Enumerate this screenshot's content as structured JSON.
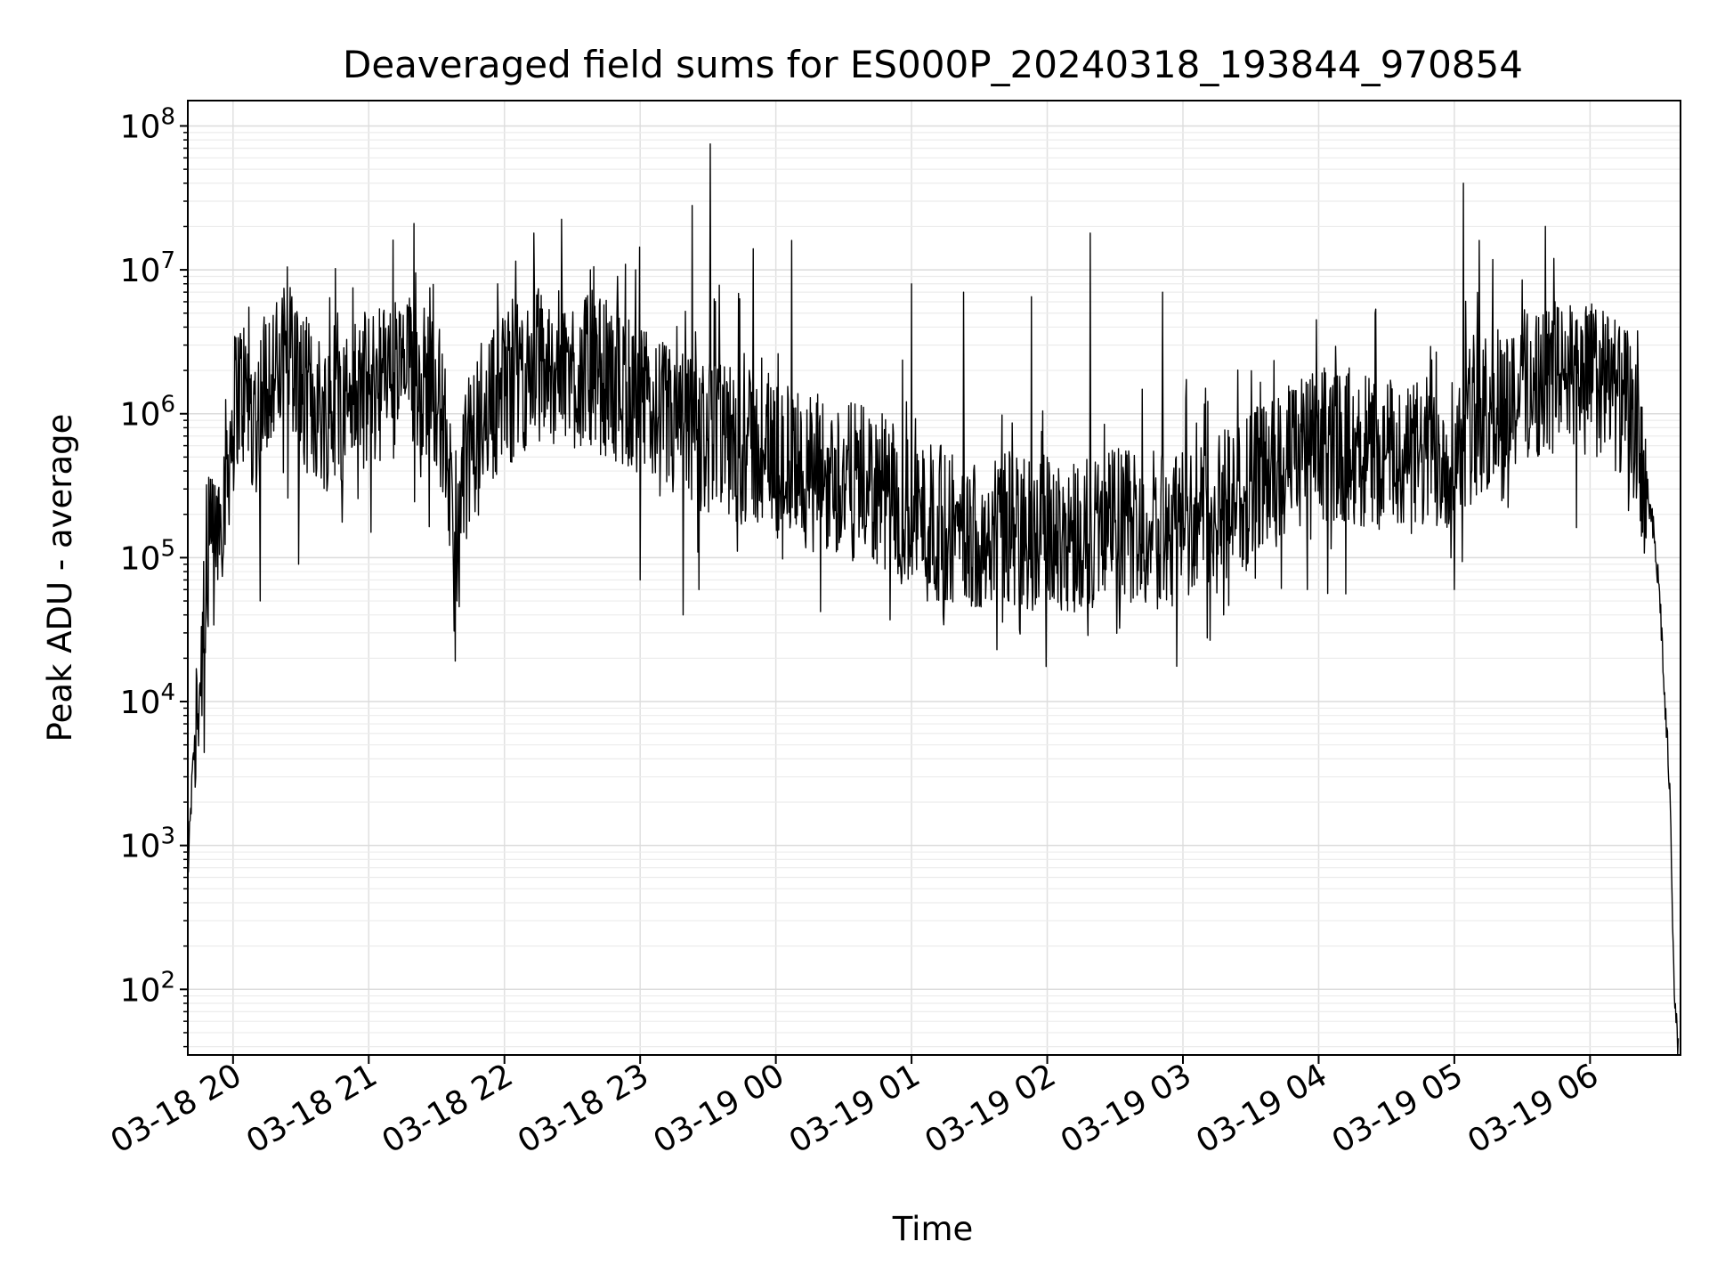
{
  "chart_data": {
    "type": "line",
    "title": "Deaveraged field sums for ES000P_20240318_193844_970854",
    "xlabel": "Time",
    "ylabel": "Peak ADU - average",
    "yscale": "log",
    "ylim": [
      35,
      150000000
    ],
    "xlim": [
      "2024-03-18 19:40",
      "2024-03-19 06:40"
    ],
    "grid": true,
    "grid_minor": true,
    "line_color": "#000000",
    "x_ticks": [
      {
        "x": "2024-03-18 20:00",
        "label": "03-18 20"
      },
      {
        "x": "2024-03-18 21:00",
        "label": "03-18 21"
      },
      {
        "x": "2024-03-18 22:00",
        "label": "03-18 22"
      },
      {
        "x": "2024-03-18 23:00",
        "label": "03-18 23"
      },
      {
        "x": "2024-03-19 00:00",
        "label": "03-19 00"
      },
      {
        "x": "2024-03-19 01:00",
        "label": "03-19 01"
      },
      {
        "x": "2024-03-19 02:00",
        "label": "03-19 02"
      },
      {
        "x": "2024-03-19 03:00",
        "label": "03-19 03"
      },
      {
        "x": "2024-03-19 04:00",
        "label": "03-19 04"
      },
      {
        "x": "2024-03-19 05:00",
        "label": "03-19 05"
      },
      {
        "x": "2024-03-19 06:00",
        "label": "03-19 06"
      }
    ],
    "y_ticks": [
      {
        "y": 100,
        "base": "10",
        "exp": "2"
      },
      {
        "y": 1000,
        "base": "10",
        "exp": "3"
      },
      {
        "y": 10000,
        "base": "10",
        "exp": "4"
      },
      {
        "y": 100000,
        "base": "10",
        "exp": "5"
      },
      {
        "y": 1000000,
        "base": "10",
        "exp": "6"
      },
      {
        "y": 10000000,
        "base": "10",
        "exp": "7"
      },
      {
        "y": 100000000,
        "base": "10",
        "exp": "8"
      }
    ],
    "series": [
      {
        "points": [
          [
            "2024-03-18 19:40",
            600
          ],
          [
            "2024-03-18 19:42",
            3000
          ],
          [
            "2024-03-18 19:44",
            8000
          ],
          [
            "2024-03-18 19:46",
            20000
          ],
          [
            "2024-03-18 19:48",
            50000
          ],
          [
            "2024-03-18 19:50",
            100000
          ],
          [
            "2024-03-18 19:52",
            150000
          ],
          [
            "2024-03-18 19:54",
            200000
          ],
          [
            "2024-03-18 19:56",
            300000
          ],
          [
            "2024-03-18 20:00",
            900000
          ],
          [
            "2024-03-18 20:02",
            1500000
          ],
          [
            "2024-03-18 20:05",
            1400000
          ],
          [
            "2024-03-18 20:10",
            900000
          ],
          [
            "2024-03-18 20:15",
            2000000
          ],
          [
            "2024-03-18 20:20",
            1800000
          ],
          [
            "2024-03-18 20:25",
            3000000
          ],
          [
            "2024-03-18 20:30",
            1500000
          ],
          [
            "2024-03-18 20:40",
            1000000
          ],
          [
            "2024-03-18 20:50",
            1200000
          ],
          [
            "2024-03-18 21:00",
            1500000
          ],
          [
            "2024-03-18 21:10",
            1800000
          ],
          [
            "2024-03-18 21:20",
            2000000
          ],
          [
            "2024-03-18 21:30",
            1500000
          ],
          [
            "2024-03-18 21:35",
            500000
          ],
          [
            "2024-03-18 21:38",
            60000
          ],
          [
            "2024-03-18 21:42",
            400000
          ],
          [
            "2024-03-18 21:50",
            1000000
          ],
          [
            "2024-03-18 22:00",
            1500000
          ],
          [
            "2024-03-18 22:15",
            2200000
          ],
          [
            "2024-03-18 22:30",
            2000000
          ],
          [
            "2024-03-18 22:45",
            1800000
          ],
          [
            "2024-03-18 23:00",
            1200000
          ],
          [
            "2024-03-18 23:15",
            800000
          ],
          [
            "2024-03-18 23:30",
            700000
          ],
          [
            "2024-03-18 23:45",
            600000
          ],
          [
            "2024-03-19 00:00",
            500000
          ],
          [
            "2024-03-19 00:15",
            400000
          ],
          [
            "2024-03-19 00:30",
            350000
          ],
          [
            "2024-03-19 00:45",
            300000
          ],
          [
            "2024-03-19 01:00",
            200000
          ],
          [
            "2024-03-19 01:15",
            170000
          ],
          [
            "2024-03-19 01:30",
            150000
          ],
          [
            "2024-03-19 01:45",
            160000
          ],
          [
            "2024-03-19 02:00",
            150000
          ],
          [
            "2024-03-19 02:15",
            150000
          ],
          [
            "2024-03-19 02:30",
            170000
          ],
          [
            "2024-03-19 02:45",
            170000
          ],
          [
            "2024-03-19 03:00",
            180000
          ],
          [
            "2024-03-19 03:15",
            200000
          ],
          [
            "2024-03-19 03:30",
            300000
          ],
          [
            "2024-03-19 03:45",
            450000
          ],
          [
            "2024-03-19 04:00",
            600000
          ],
          [
            "2024-03-19 04:15",
            600000
          ],
          [
            "2024-03-19 04:30",
            500000
          ],
          [
            "2024-03-19 04:45",
            500000
          ],
          [
            "2024-03-19 05:00",
            600000
          ],
          [
            "2024-03-19 05:15",
            1000000
          ],
          [
            "2024-03-19 05:30",
            1600000
          ],
          [
            "2024-03-19 05:45",
            1800000
          ],
          [
            "2024-03-19 06:00",
            1800000
          ],
          [
            "2024-03-19 06:10",
            1500000
          ],
          [
            "2024-03-19 06:20",
            800000
          ],
          [
            "2024-03-19 06:25",
            300000
          ],
          [
            "2024-03-19 06:28",
            150000
          ],
          [
            "2024-03-19 06:31",
            50000
          ],
          [
            "2024-03-19 06:33",
            10000
          ],
          [
            "2024-03-19 06:35",
            3000
          ],
          [
            "2024-03-19 06:36",
            800
          ],
          [
            "2024-03-19 06:37",
            150
          ],
          [
            "2024-03-19 06:38",
            60
          ],
          [
            "2024-03-19 06:39",
            35
          ]
        ],
        "spikes": [
          [
            "2024-03-18 20:07",
            5500000
          ],
          [
            "2024-03-18 20:26",
            6500000
          ],
          [
            "2024-03-18 20:53",
            7500000
          ],
          [
            "2024-03-18 21:20",
            21000000
          ],
          [
            "2024-03-18 21:27",
            7500000
          ],
          [
            "2024-03-18 21:57",
            8000000
          ],
          [
            "2024-03-18 22:05",
            11500000
          ],
          [
            "2024-03-18 22:13",
            18000000
          ],
          [
            "2024-03-18 22:38",
            10000000
          ],
          [
            "2024-03-18 22:50",
            9000000
          ],
          [
            "2024-03-18 22:58",
            10000000
          ],
          [
            "2024-03-18 23:19",
            12000000
          ],
          [
            "2024-03-18 23:23",
            28000000
          ],
          [
            "2024-03-18 23:31",
            75000000
          ],
          [
            "2024-03-18 23:50",
            14000000
          ],
          [
            "2024-03-19 00:07",
            16000000
          ],
          [
            "2024-03-19 01:00",
            8000000
          ],
          [
            "2024-03-19 01:23",
            7000000
          ],
          [
            "2024-03-19 01:53",
            6500000
          ],
          [
            "2024-03-19 02:19",
            18000000
          ],
          [
            "2024-03-19 02:51",
            7000000
          ],
          [
            "2024-03-19 03:59",
            4500000
          ],
          [
            "2024-03-19 04:25",
            5000000
          ],
          [
            "2024-03-19 05:04",
            40000000
          ],
          [
            "2024-03-19 05:11",
            16000000
          ],
          [
            "2024-03-19 05:30",
            8500000
          ],
          [
            "2024-03-19 05:44",
            12000000
          ],
          [
            "2024-03-19 05:58",
            5000000
          ]
        ],
        "dips": [
          [
            "2024-03-18 20:12",
            50000
          ],
          [
            "2024-03-18 20:29",
            90000
          ],
          [
            "2024-03-18 21:01",
            150000
          ],
          [
            "2024-03-18 21:39",
            50000
          ],
          [
            "2024-03-18 23:00",
            70000
          ],
          [
            "2024-03-18 23:19",
            40000
          ],
          [
            "2024-03-18 23:26",
            60000
          ],
          [
            "2024-03-19 01:07",
            50000
          ],
          [
            "2024-03-19 01:14",
            40000
          ],
          [
            "2024-03-19 01:27",
            50000
          ],
          [
            "2024-03-19 01:43",
            50000
          ],
          [
            "2024-03-19 02:12",
            42000
          ],
          [
            "2024-03-19 02:20",
            45000
          ],
          [
            "2024-03-19 03:18",
            40000
          ],
          [
            "2024-03-19 03:55",
            60000
          ],
          [
            "2024-03-19 05:00",
            60000
          ]
        ]
      }
    ]
  }
}
